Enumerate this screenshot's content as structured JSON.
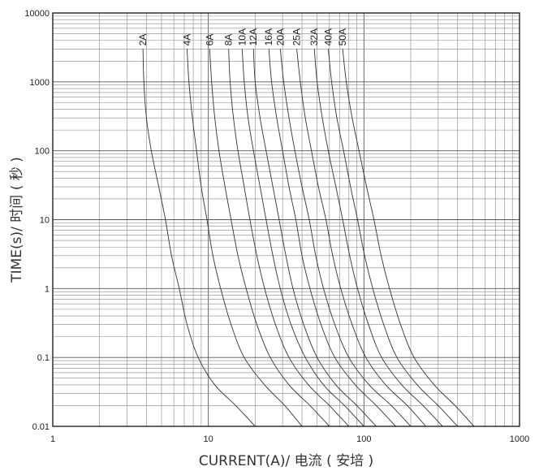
{
  "chart_data": {
    "type": "line",
    "title": "",
    "xlabel": "CURRENT(A)/ 电流 ( 安培 )",
    "ylabel": "TIME(s)/ 时间 ( 秒 )",
    "x_scale": "log",
    "y_scale": "log",
    "xlim": [
      1,
      1000
    ],
    "ylim": [
      0.01,
      10000
    ],
    "grid": true,
    "x_ticks": [
      {
        "value": 1,
        "label": "1"
      },
      {
        "value": 10,
        "label": "10"
      },
      {
        "value": 100,
        "label": "100"
      },
      {
        "value": 1000,
        "label": "1000"
      }
    ],
    "y_ticks": [
      {
        "value": 10000,
        "label": "10000"
      },
      {
        "value": 1000,
        "label": "1000"
      },
      {
        "value": 100,
        "label": "100"
      },
      {
        "value": 10,
        "label": "10"
      },
      {
        "value": 1,
        "label": "1"
      },
      {
        "value": 0.1,
        "label": "0.1"
      },
      {
        "value": 0.01,
        "label": "0.01"
      }
    ],
    "series": [
      {
        "name": "2A",
        "points": [
          [
            3.8,
            3000
          ],
          [
            3.85,
            1000
          ],
          [
            4.0,
            300
          ],
          [
            4.3,
            100
          ],
          [
            4.8,
            30
          ],
          [
            5.3,
            10
          ],
          [
            5.8,
            3
          ],
          [
            6.5,
            1
          ],
          [
            7.3,
            0.3
          ],
          [
            8.6,
            0.1
          ],
          [
            11,
            0.04
          ],
          [
            15,
            0.02
          ],
          [
            20,
            0.01
          ]
        ]
      },
      {
        "name": "4A",
        "points": [
          [
            7.3,
            3000
          ],
          [
            7.5,
            1000
          ],
          [
            7.9,
            300
          ],
          [
            8.4,
            100
          ],
          [
            9.0,
            30
          ],
          [
            9.8,
            10
          ],
          [
            10.7,
            3
          ],
          [
            12,
            1
          ],
          [
            14,
            0.3
          ],
          [
            17,
            0.1
          ],
          [
            23,
            0.04
          ],
          [
            31,
            0.02
          ],
          [
            40,
            0.01
          ]
        ]
      },
      {
        "name": "6A",
        "points": [
          [
            10.2,
            3000
          ],
          [
            10.5,
            1000
          ],
          [
            11,
            300
          ],
          [
            11.7,
            100
          ],
          [
            12.8,
            30
          ],
          [
            14,
            10
          ],
          [
            15.5,
            3
          ],
          [
            17.5,
            1
          ],
          [
            20.5,
            0.3
          ],
          [
            25,
            0.1
          ],
          [
            33,
            0.04
          ],
          [
            45,
            0.02
          ],
          [
            60,
            0.01
          ]
        ]
      },
      {
        "name": "8A",
        "points": [
          [
            13.5,
            3000
          ],
          [
            13.8,
            1000
          ],
          [
            14.5,
            300
          ],
          [
            15.5,
            100
          ],
          [
            17,
            30
          ],
          [
            18.5,
            10
          ],
          [
            20.5,
            3
          ],
          [
            23,
            1
          ],
          [
            27,
            0.3
          ],
          [
            33,
            0.1
          ],
          [
            44,
            0.04
          ],
          [
            60,
            0.02
          ],
          [
            80,
            0.01
          ]
        ]
      },
      {
        "name": "10A",
        "points": [
          [
            16.5,
            3000
          ],
          [
            17,
            1000
          ],
          [
            18,
            300
          ],
          [
            19.5,
            100
          ],
          [
            21.5,
            30
          ],
          [
            23.5,
            10
          ],
          [
            26,
            3
          ],
          [
            29,
            1
          ],
          [
            34,
            0.3
          ],
          [
            42,
            0.1
          ],
          [
            55,
            0.04
          ],
          [
            75,
            0.02
          ],
          [
            100,
            0.01
          ]
        ]
      },
      {
        "name": "12A",
        "points": [
          [
            19.5,
            3000
          ],
          [
            20,
            1000
          ],
          [
            21.5,
            300
          ],
          [
            23.5,
            100
          ],
          [
            26,
            30
          ],
          [
            28.5,
            10
          ],
          [
            31.5,
            3
          ],
          [
            35,
            1
          ],
          [
            41,
            0.3
          ],
          [
            50,
            0.1
          ],
          [
            66,
            0.04
          ],
          [
            90,
            0.02
          ],
          [
            120,
            0.01
          ]
        ]
      },
      {
        "name": "16A",
        "points": [
          [
            24.5,
            3000
          ],
          [
            25.5,
            1000
          ],
          [
            27.5,
            300
          ],
          [
            30,
            100
          ],
          [
            33,
            30
          ],
          [
            36.5,
            10
          ],
          [
            40,
            3
          ],
          [
            45,
            1
          ],
          [
            53,
            0.3
          ],
          [
            65,
            0.1
          ],
          [
            88,
            0.04
          ],
          [
            120,
            0.02
          ],
          [
            160,
            0.01
          ]
        ]
      },
      {
        "name": "20A",
        "points": [
          [
            29,
            3000
          ],
          [
            30.5,
            1000
          ],
          [
            33,
            300
          ],
          [
            36,
            100
          ],
          [
            40,
            30
          ],
          [
            44.5,
            10
          ],
          [
            49,
            3
          ],
          [
            55,
            1
          ],
          [
            65,
            0.3
          ],
          [
            80,
            0.1
          ],
          [
            108,
            0.04
          ],
          [
            150,
            0.02
          ],
          [
            200,
            0.01
          ]
        ]
      },
      {
        "name": "25A",
        "points": [
          [
            37,
            3000
          ],
          [
            39,
            1000
          ],
          [
            42,
            300
          ],
          [
            46,
            100
          ],
          [
            51,
            30
          ],
          [
            57,
            10
          ],
          [
            63,
            3
          ],
          [
            71,
            1
          ],
          [
            84,
            0.3
          ],
          [
            103,
            0.1
          ],
          [
            138,
            0.04
          ],
          [
            190,
            0.02
          ],
          [
            250,
            0.01
          ]
        ]
      },
      {
        "name": "32A",
        "points": [
          [
            48,
            3000
          ],
          [
            50,
            1000
          ],
          [
            54,
            300
          ],
          [
            59,
            100
          ],
          [
            66,
            30
          ],
          [
            73,
            10
          ],
          [
            81,
            3
          ],
          [
            91,
            1
          ],
          [
            107,
            0.3
          ],
          [
            130,
            0.1
          ],
          [
            175,
            0.04
          ],
          [
            240,
            0.02
          ],
          [
            320,
            0.01
          ]
        ]
      },
      {
        "name": "40A",
        "points": [
          [
            59,
            3000
          ],
          [
            62,
            1000
          ],
          [
            67,
            300
          ],
          [
            74,
            100
          ],
          [
            82,
            30
          ],
          [
            91,
            10
          ],
          [
            101,
            3
          ],
          [
            114,
            1
          ],
          [
            134,
            0.3
          ],
          [
            163,
            0.1
          ],
          [
            220,
            0.04
          ],
          [
            300,
            0.02
          ],
          [
            400,
            0.01
          ]
        ]
      },
      {
        "name": "50A",
        "points": [
          [
            73,
            3000
          ],
          [
            77,
            1000
          ],
          [
            84,
            300
          ],
          [
            93,
            100
          ],
          [
            104,
            30
          ],
          [
            116,
            10
          ],
          [
            129,
            3
          ],
          [
            146,
            1
          ],
          [
            172,
            0.3
          ],
          [
            210,
            0.1
          ],
          [
            283,
            0.04
          ],
          [
            385,
            0.02
          ],
          [
            510,
            0.01
          ]
        ]
      }
    ]
  }
}
